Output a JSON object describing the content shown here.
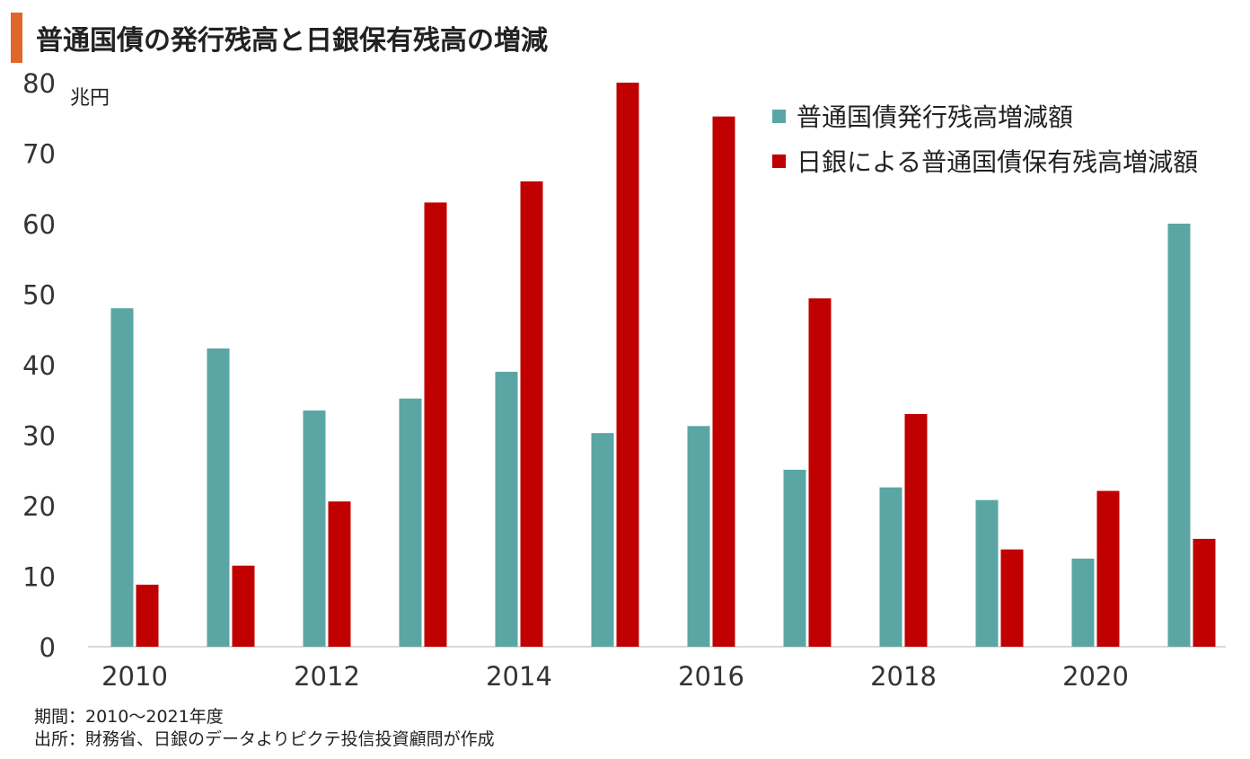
{
  "title": "普通国債の発行残高と日銀保有残高の増減",
  "colors": {
    "accent": "#e0662a",
    "issuance": "#5ba6a4",
    "boj": "#c00000",
    "axis": "#d9d9d9"
  },
  "chart_data": {
    "type": "bar",
    "categories": [
      "2010",
      "2011",
      "2012",
      "2013",
      "2014",
      "2015",
      "2016",
      "2017",
      "2018",
      "2019",
      "2020",
      "2021"
    ],
    "x_tick_labels": [
      "2010",
      "",
      "2012",
      "",
      "2014",
      "",
      "2016",
      "",
      "2018",
      "",
      "2020",
      ""
    ],
    "series": [
      {
        "name": "普通国債発行残高増減額",
        "values": [
          48.0,
          42.3,
          33.5,
          35.2,
          39.0,
          30.3,
          31.3,
          25.1,
          22.6,
          20.8,
          12.5,
          60.0
        ]
      },
      {
        "name": "日銀による普通国債保有残高増減額",
        "values": [
          8.8,
          11.5,
          20.6,
          63.0,
          66.0,
          80.0,
          75.2,
          49.4,
          33.0,
          13.8,
          22.1,
          15.3
        ]
      }
    ],
    "ylim": [
      0,
      80
    ],
    "yticks": [
      0,
      10,
      20,
      30,
      40,
      50,
      60,
      70,
      80
    ],
    "ylabel": "兆円",
    "xlabel": "",
    "grid": false,
    "legend_position": "top-right"
  },
  "footnotes": {
    "period": "期間：2010～2021年度",
    "source": "出所：財務省、日銀のデータよりピクテ投信投資顧問が作成"
  }
}
